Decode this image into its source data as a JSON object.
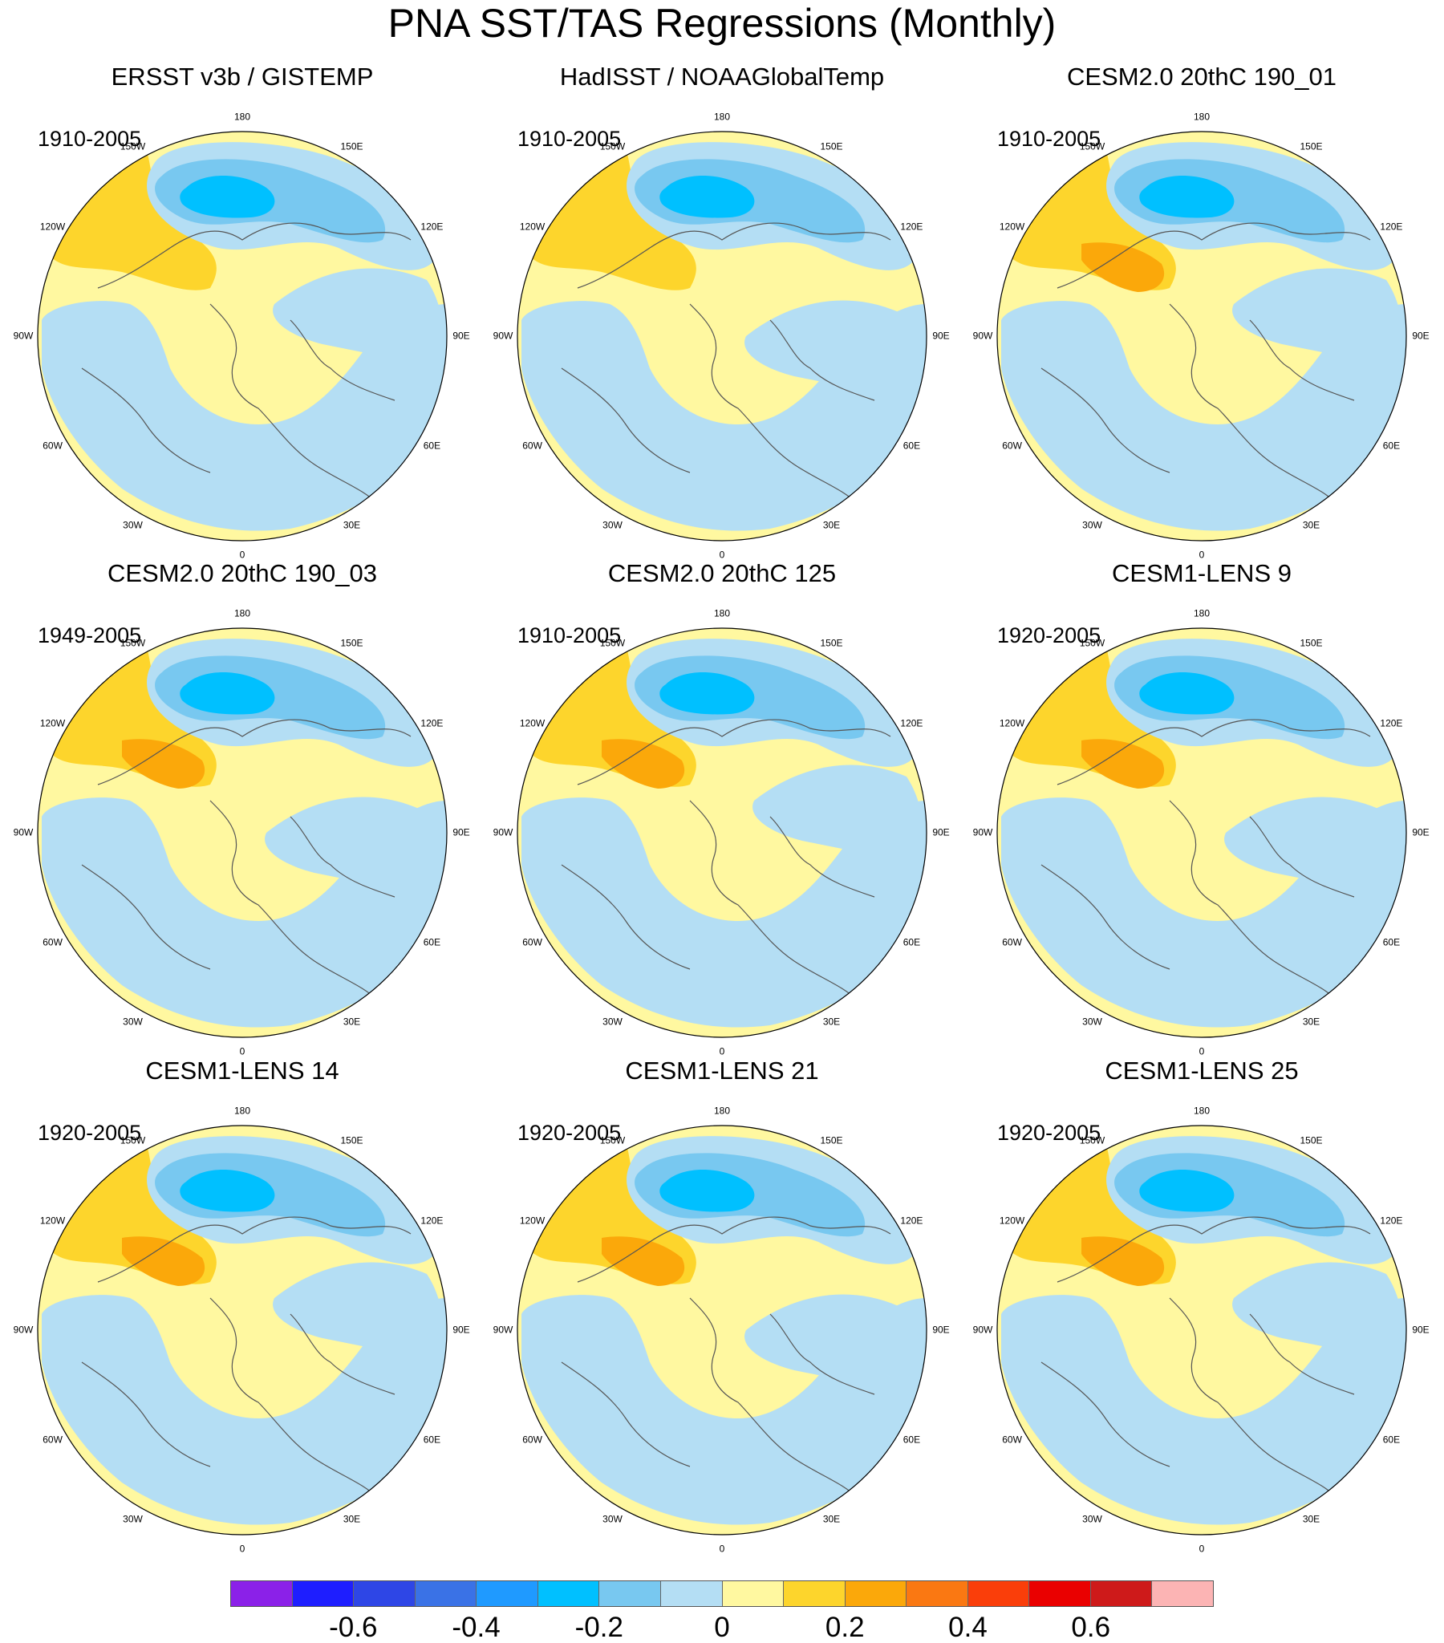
{
  "title": "PNA SST/TAS Regressions (Monthly)",
  "panels": [
    {
      "title": "ERSST v3b / GISTEMP",
      "period": "1910-2005"
    },
    {
      "title": "HadISST / NOAAGlobalTemp",
      "period": "1910-2005"
    },
    {
      "title": "CESM2.0 20thC 190_01",
      "period": "1910-2005"
    },
    {
      "title": "CESM2.0 20thC 190_03",
      "period": "1949-2005"
    },
    {
      "title": "CESM2.0 20thC 125",
      "period": "1910-2005"
    },
    {
      "title": "CESM1-LENS 9",
      "period": "1920-2005"
    },
    {
      "title": "CESM1-LENS 14",
      "period": "1920-2005"
    },
    {
      "title": "CESM1-LENS 21",
      "period": "1920-2005"
    },
    {
      "title": "CESM1-LENS 25",
      "period": "1920-2005"
    }
  ],
  "longitude_labels": [
    "180",
    "150E",
    "120E",
    "90E",
    "60E",
    "30E",
    "0",
    "30W",
    "60W",
    "90W",
    "120W",
    "150W"
  ],
  "colorbar": {
    "colors": [
      "#8b21e8",
      "#1e1eff",
      "#2e46e6",
      "#3a72e6",
      "#1f9aff",
      "#00c0ff",
      "#78c8f0",
      "#b4def4",
      "#fff8a0",
      "#fdd52c",
      "#fba80a",
      "#fa7812",
      "#fa3e0a",
      "#ea0000",
      "#ce1a1a",
      "#fcb4b4"
    ],
    "labels": [
      "-0.6",
      "-0.4",
      "-0.2",
      "0",
      "0.2",
      "0.4",
      "0.6"
    ]
  }
}
